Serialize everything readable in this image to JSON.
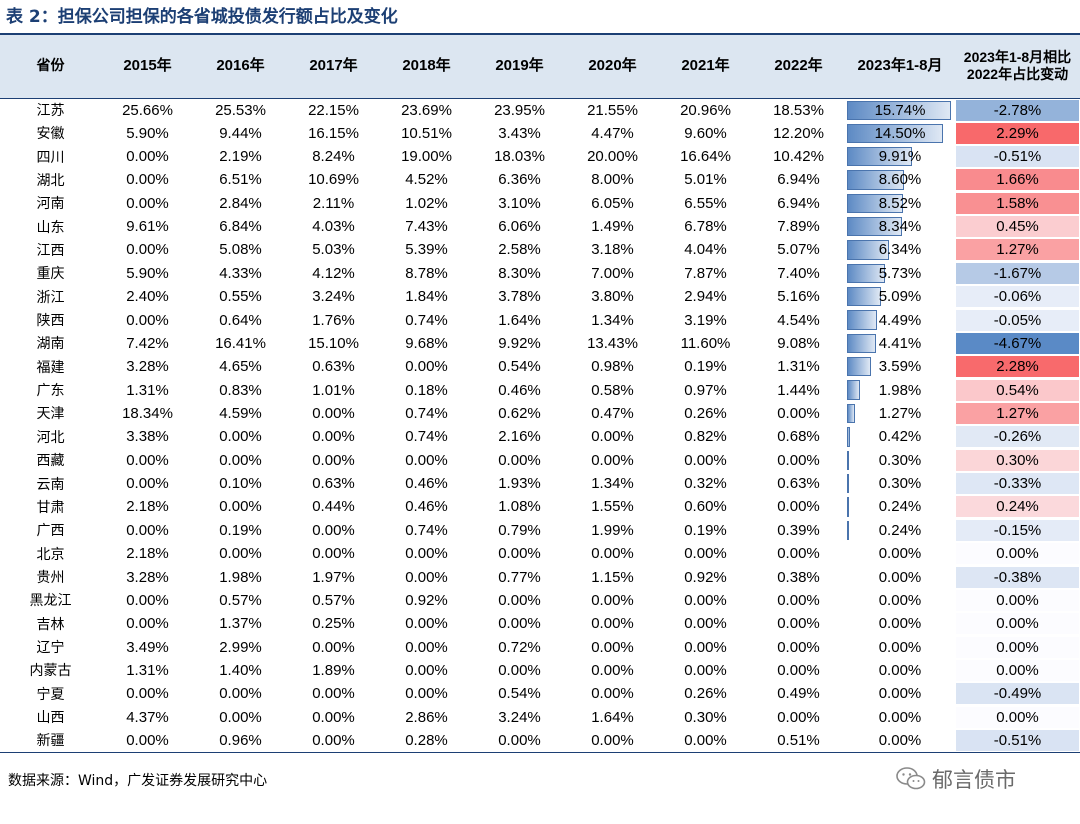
{
  "title": "表 2：担保公司担保的各省城投债发行额占比及变化",
  "headers": [
    "省份",
    "2015年",
    "2016年",
    "2017年",
    "2018年",
    "2019年",
    "2020年",
    "2021年",
    "2022年",
    "2023年1-8月",
    "2023年1-8月相比2022年占比变动"
  ],
  "rows": [
    {
      "province": "江苏",
      "values": [
        "25.66%",
        "25.53%",
        "22.15%",
        "23.69%",
        "23.95%",
        "21.55%",
        "20.96%",
        "18.53%"
      ],
      "ytd": "15.74%",
      "ytd_value": 15.74,
      "change": "-2.78%",
      "change_value": -2.78
    },
    {
      "province": "安徽",
      "values": [
        "5.90%",
        "9.44%",
        "16.15%",
        "10.51%",
        "3.43%",
        "4.47%",
        "9.60%",
        "12.20%"
      ],
      "ytd": "14.50%",
      "ytd_value": 14.5,
      "change": "2.29%",
      "change_value": 2.29
    },
    {
      "province": "四川",
      "values": [
        "0.00%",
        "2.19%",
        "8.24%",
        "19.00%",
        "18.03%",
        "20.00%",
        "16.64%",
        "10.42%"
      ],
      "ytd": "9.91%",
      "ytd_value": 9.91,
      "change": "-0.51%",
      "change_value": -0.51
    },
    {
      "province": "湖北",
      "values": [
        "0.00%",
        "6.51%",
        "10.69%",
        "4.52%",
        "6.36%",
        "8.00%",
        "5.01%",
        "6.94%"
      ],
      "ytd": "8.60%",
      "ytd_value": 8.6,
      "change": "1.66%",
      "change_value": 1.66
    },
    {
      "province": "河南",
      "values": [
        "0.00%",
        "2.84%",
        "2.11%",
        "1.02%",
        "3.10%",
        "6.05%",
        "6.55%",
        "6.94%"
      ],
      "ytd": "8.52%",
      "ytd_value": 8.52,
      "change": "1.58%",
      "change_value": 1.58
    },
    {
      "province": "山东",
      "values": [
        "9.61%",
        "6.84%",
        "4.03%",
        "7.43%",
        "6.06%",
        "1.49%",
        "6.78%",
        "7.89%"
      ],
      "ytd": "8.34%",
      "ytd_value": 8.34,
      "change": "0.45%",
      "change_value": 0.45
    },
    {
      "province": "江西",
      "values": [
        "0.00%",
        "5.08%",
        "5.03%",
        "5.39%",
        "2.58%",
        "3.18%",
        "4.04%",
        "5.07%"
      ],
      "ytd": "6.34%",
      "ytd_value": 6.34,
      "change": "1.27%",
      "change_value": 1.27
    },
    {
      "province": "重庆",
      "values": [
        "5.90%",
        "4.33%",
        "4.12%",
        "8.78%",
        "8.30%",
        "7.00%",
        "7.87%",
        "7.40%"
      ],
      "ytd": "5.73%",
      "ytd_value": 5.73,
      "change": "-1.67%",
      "change_value": -1.67
    },
    {
      "province": "浙江",
      "values": [
        "2.40%",
        "0.55%",
        "3.24%",
        "1.84%",
        "3.78%",
        "3.80%",
        "2.94%",
        "5.16%"
      ],
      "ytd": "5.09%",
      "ytd_value": 5.09,
      "change": "-0.06%",
      "change_value": -0.06
    },
    {
      "province": "陕西",
      "values": [
        "0.00%",
        "0.64%",
        "1.76%",
        "0.74%",
        "1.64%",
        "1.34%",
        "3.19%",
        "4.54%"
      ],
      "ytd": "4.49%",
      "ytd_value": 4.49,
      "change": "-0.05%",
      "change_value": -0.05
    },
    {
      "province": "湖南",
      "values": [
        "7.42%",
        "16.41%",
        "15.10%",
        "9.68%",
        "9.92%",
        "13.43%",
        "11.60%",
        "9.08%"
      ],
      "ytd": "4.41%",
      "ytd_value": 4.41,
      "change": "-4.67%",
      "change_value": -4.67
    },
    {
      "province": "福建",
      "values": [
        "3.28%",
        "4.65%",
        "0.63%",
        "0.00%",
        "0.54%",
        "0.98%",
        "0.19%",
        "1.31%"
      ],
      "ytd": "3.59%",
      "ytd_value": 3.59,
      "change": "2.28%",
      "change_value": 2.28
    },
    {
      "province": "广东",
      "values": [
        "1.31%",
        "0.83%",
        "1.01%",
        "0.18%",
        "0.46%",
        "0.58%",
        "0.97%",
        "1.44%"
      ],
      "ytd": "1.98%",
      "ytd_value": 1.98,
      "change": "0.54%",
      "change_value": 0.54
    },
    {
      "province": "天津",
      "values": [
        "18.34%",
        "4.59%",
        "0.00%",
        "0.74%",
        "0.62%",
        "0.47%",
        "0.26%",
        "0.00%"
      ],
      "ytd": "1.27%",
      "ytd_value": 1.27,
      "change": "1.27%",
      "change_value": 1.27
    },
    {
      "province": "河北",
      "values": [
        "3.38%",
        "0.00%",
        "0.00%",
        "0.74%",
        "2.16%",
        "0.00%",
        "0.82%",
        "0.68%"
      ],
      "ytd": "0.42%",
      "ytd_value": 0.42,
      "change": "-0.26%",
      "change_value": -0.26
    },
    {
      "province": "西藏",
      "values": [
        "0.00%",
        "0.00%",
        "0.00%",
        "0.00%",
        "0.00%",
        "0.00%",
        "0.00%",
        "0.00%"
      ],
      "ytd": "0.30%",
      "ytd_value": 0.3,
      "change": "0.30%",
      "change_value": 0.3
    },
    {
      "province": "云南",
      "values": [
        "0.00%",
        "0.10%",
        "0.63%",
        "0.46%",
        "1.93%",
        "1.34%",
        "0.32%",
        "0.63%"
      ],
      "ytd": "0.30%",
      "ytd_value": 0.3,
      "change": "-0.33%",
      "change_value": -0.33
    },
    {
      "province": "甘肃",
      "values": [
        "2.18%",
        "0.00%",
        "0.44%",
        "0.46%",
        "1.08%",
        "1.55%",
        "0.60%",
        "0.00%"
      ],
      "ytd": "0.24%",
      "ytd_value": 0.24,
      "change": "0.24%",
      "change_value": 0.24
    },
    {
      "province": "广西",
      "values": [
        "0.00%",
        "0.19%",
        "0.00%",
        "0.74%",
        "0.79%",
        "1.99%",
        "0.19%",
        "0.39%"
      ],
      "ytd": "0.24%",
      "ytd_value": 0.24,
      "change": "-0.15%",
      "change_value": -0.15
    },
    {
      "province": "北京",
      "values": [
        "2.18%",
        "0.00%",
        "0.00%",
        "0.00%",
        "0.00%",
        "0.00%",
        "0.00%",
        "0.00%"
      ],
      "ytd": "0.00%",
      "ytd_value": 0,
      "change": "0.00%",
      "change_value": 0
    },
    {
      "province": "贵州",
      "values": [
        "3.28%",
        "1.98%",
        "1.97%",
        "0.00%",
        "0.77%",
        "1.15%",
        "0.92%",
        "0.38%"
      ],
      "ytd": "0.00%",
      "ytd_value": 0,
      "change": "-0.38%",
      "change_value": -0.38
    },
    {
      "province": "黑龙江",
      "values": [
        "0.00%",
        "0.57%",
        "0.57%",
        "0.92%",
        "0.00%",
        "0.00%",
        "0.00%",
        "0.00%"
      ],
      "ytd": "0.00%",
      "ytd_value": 0,
      "change": "0.00%",
      "change_value": 0
    },
    {
      "province": "吉林",
      "values": [
        "0.00%",
        "1.37%",
        "0.25%",
        "0.00%",
        "0.00%",
        "0.00%",
        "0.00%",
        "0.00%"
      ],
      "ytd": "0.00%",
      "ytd_value": 0,
      "change": "0.00%",
      "change_value": 0
    },
    {
      "province": "辽宁",
      "values": [
        "3.49%",
        "2.99%",
        "0.00%",
        "0.00%",
        "0.72%",
        "0.00%",
        "0.00%",
        "0.00%"
      ],
      "ytd": "0.00%",
      "ytd_value": 0,
      "change": "0.00%",
      "change_value": 0
    },
    {
      "province": "内蒙古",
      "values": [
        "1.31%",
        "1.40%",
        "1.89%",
        "0.00%",
        "0.00%",
        "0.00%",
        "0.00%",
        "0.00%"
      ],
      "ytd": "0.00%",
      "ytd_value": 0,
      "change": "0.00%",
      "change_value": 0
    },
    {
      "province": "宁夏",
      "values": [
        "0.00%",
        "0.00%",
        "0.00%",
        "0.00%",
        "0.54%",
        "0.00%",
        "0.26%",
        "0.49%"
      ],
      "ytd": "0.00%",
      "ytd_value": 0,
      "change": "-0.49%",
      "change_value": -0.49
    },
    {
      "province": "山西",
      "values": [
        "4.37%",
        "0.00%",
        "0.00%",
        "2.86%",
        "3.24%",
        "1.64%",
        "0.30%",
        "0.00%"
      ],
      "ytd": "0.00%",
      "ytd_value": 0,
      "change": "0.00%",
      "change_value": 0
    },
    {
      "province": "新疆",
      "values": [
        "0.00%",
        "0.96%",
        "0.00%",
        "0.28%",
        "0.00%",
        "0.00%",
        "0.00%",
        "0.51%"
      ],
      "ytd": "0.00%",
      "ytd_value": 0,
      "change": "-0.51%",
      "change_value": -0.51
    }
  ],
  "footer": {
    "source_label": "数据来源：",
    "source_text": "Wind，广发证券发展研究中心"
  },
  "watermark": {
    "text": "郁言债市",
    "icon": "wechat-icon"
  },
  "colors": {
    "title": "#1c3f74",
    "header_bg": "#dce6f1",
    "bar": "#5d8ac4",
    "positive": "#f8696b",
    "negative": "#5a8ac6"
  }
}
